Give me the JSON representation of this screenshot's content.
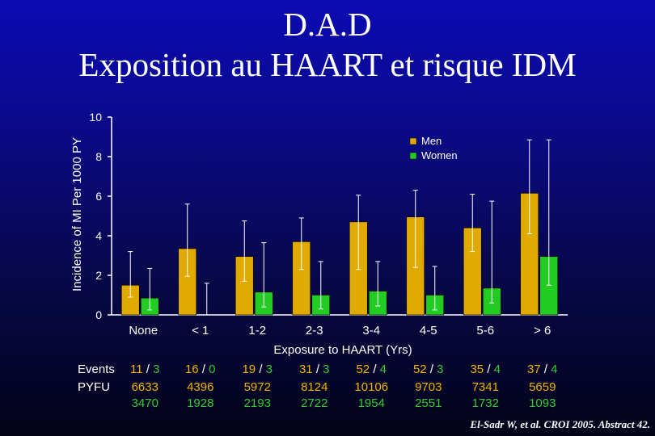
{
  "title_line1": "D.A.D",
  "title_line2": "Exposition au HAART et risque IDM",
  "colors": {
    "men": "#e0aa00",
    "women": "#22cc22",
    "background": "#0a0a90"
  },
  "chart_data": {
    "type": "bar",
    "categories": [
      "None",
      "< 1",
      "1-2",
      "2-3",
      "3-4",
      "4-5",
      "5-6",
      "> 6"
    ],
    "series": [
      {
        "name": "Men",
        "values": [
          1.5,
          3.35,
          2.95,
          3.7,
          4.7,
          4.95,
          4.4,
          6.15
        ],
        "ci_low": [
          0.9,
          1.95,
          1.7,
          2.3,
          2.3,
          2.4,
          3.2,
          4.1
        ],
        "ci_high": [
          3.2,
          5.6,
          4.75,
          4.9,
          6.05,
          6.3,
          6.1,
          8.85
        ]
      },
      {
        "name": "Women",
        "values": [
          0.85,
          0.0,
          1.15,
          1.0,
          1.2,
          1.0,
          1.35,
          2.95
        ],
        "ci_low": [
          0.25,
          0.0,
          0.4,
          0.3,
          0.45,
          0.25,
          0.6,
          1.5
        ],
        "ci_high": [
          2.35,
          1.6,
          3.65,
          2.7,
          2.7,
          2.45,
          5.75,
          8.85
        ]
      }
    ],
    "ylabel": "Incidence of MI Per 1000 PY",
    "xlabel": "Exposure to HAART (Yrs)",
    "ylim": [
      0,
      10
    ],
    "yticks": [
      0,
      2,
      4,
      6,
      8,
      10
    ],
    "legend": "top-right",
    "grid": false
  },
  "table": {
    "events_label": "Events",
    "pyfu_label": "PYFU",
    "events_men": [
      "11",
      "16",
      "19",
      "31",
      "52",
      "52",
      "35",
      "37"
    ],
    "events_women": [
      "3",
      "0",
      "3",
      "3",
      "4",
      "3",
      "4",
      "4"
    ],
    "events_sep": "/",
    "pyfu_men": [
      "6633",
      "4396",
      "5972",
      "8124",
      "10106",
      "9703",
      "7341",
      "5659"
    ],
    "pyfu_women": [
      "3470",
      "1928",
      "2193",
      "2722",
      "1954",
      "2551",
      "1732",
      "1093"
    ]
  },
  "citation": "El-Sadr W, et al. CROI 2005. Abstract 42."
}
